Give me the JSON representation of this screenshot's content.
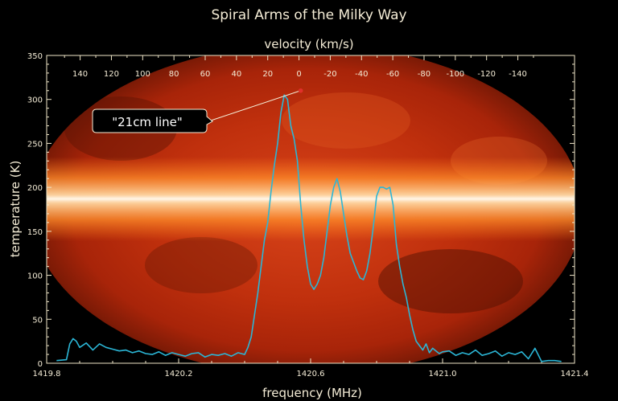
{
  "chart_data": {
    "type": "line",
    "title": "Spiral Arms of the Milky Way",
    "xlabel": "frequency (MHz)",
    "ylabel": "temperature (K)",
    "x2label": "velocity (km/s)",
    "xlim": [
      1419.8,
      1421.4
    ],
    "ylim": [
      0,
      350
    ],
    "x_ticks": [
      "1419.8",
      "1420.2",
      "1420.6",
      "1421.0",
      "1421.4"
    ],
    "y_ticks": [
      "0",
      "50",
      "100",
      "150",
      "200",
      "250",
      "300",
      "350"
    ],
    "velocity_ticks": [
      "140",
      "120",
      "100",
      "80",
      "60",
      "40",
      "20",
      "0",
      "-20",
      "-40",
      "-60",
      "-80",
      "-100",
      "-120",
      "-140"
    ],
    "grid": false,
    "background": "Milky Way all-sky map (red/orange/white)",
    "line_color": "#2bb6d6",
    "annotation": {
      "text": "\"21cm line\"",
      "x": 1420.57,
      "y": 310
    },
    "series": [
      {
        "x": [
          1419.83,
          1419.86,
          1419.87,
          1419.88,
          1419.89,
          1419.9,
          1419.92,
          1419.94,
          1419.96,
          1419.98,
          1420.0,
          1420.02,
          1420.04,
          1420.06,
          1420.08,
          1420.1,
          1420.12,
          1420.14,
          1420.16,
          1420.18,
          1420.2,
          1420.22,
          1420.24,
          1420.26,
          1420.28,
          1420.3,
          1420.32,
          1420.34,
          1420.36,
          1420.38,
          1420.4,
          1420.41,
          1420.42,
          1420.43,
          1420.44,
          1420.45,
          1420.46,
          1420.47,
          1420.48,
          1420.49,
          1420.5,
          1420.51,
          1420.52,
          1420.53,
          1420.54,
          1420.55,
          1420.56,
          1420.57,
          1420.58,
          1420.59,
          1420.6,
          1420.61,
          1420.62,
          1420.63,
          1420.64,
          1420.65,
          1420.66,
          1420.67,
          1420.68,
          1420.69,
          1420.7,
          1420.71,
          1420.72,
          1420.73,
          1420.74,
          1420.75,
          1420.76,
          1420.77,
          1420.78,
          1420.79,
          1420.8,
          1420.81,
          1420.82,
          1420.83,
          1420.84,
          1420.85,
          1420.86,
          1420.87,
          1420.88,
          1420.89,
          1420.9,
          1420.91,
          1420.92,
          1420.93,
          1420.94,
          1420.95,
          1420.96,
          1420.97,
          1420.98,
          1420.99,
          1421.0,
          1421.02,
          1421.04,
          1421.06,
          1421.08,
          1421.1,
          1421.12,
          1421.14,
          1421.16,
          1421.18,
          1421.2,
          1421.22,
          1421.24,
          1421.26,
          1421.28,
          1421.3,
          1421.32,
          1421.34,
          1421.36
        ],
        "y": [
          3,
          4,
          22,
          28,
          25,
          18,
          23,
          15,
          22,
          18,
          16,
          14,
          15,
          12,
          14,
          11,
          10,
          13,
          9,
          12,
          10,
          8,
          11,
          12,
          7,
          10,
          9,
          11,
          8,
          12,
          10,
          18,
          30,
          55,
          80,
          110,
          140,
          160,
          195,
          225,
          250,
          285,
          305,
          300,
          270,
          255,
          230,
          180,
          140,
          110,
          90,
          84,
          90,
          100,
          120,
          150,
          180,
          200,
          210,
          195,
          170,
          145,
          125,
          115,
          105,
          97,
          95,
          105,
          125,
          155,
          190,
          200,
          200,
          198,
          200,
          180,
          135,
          110,
          90,
          75,
          55,
          38,
          25,
          20,
          15,
          22,
          12,
          17,
          14,
          11,
          13,
          14,
          9,
          12,
          10,
          15,
          9,
          11,
          14,
          8,
          12,
          10,
          13,
          5,
          17,
          2,
          3,
          3,
          2
        ]
      }
    ]
  }
}
